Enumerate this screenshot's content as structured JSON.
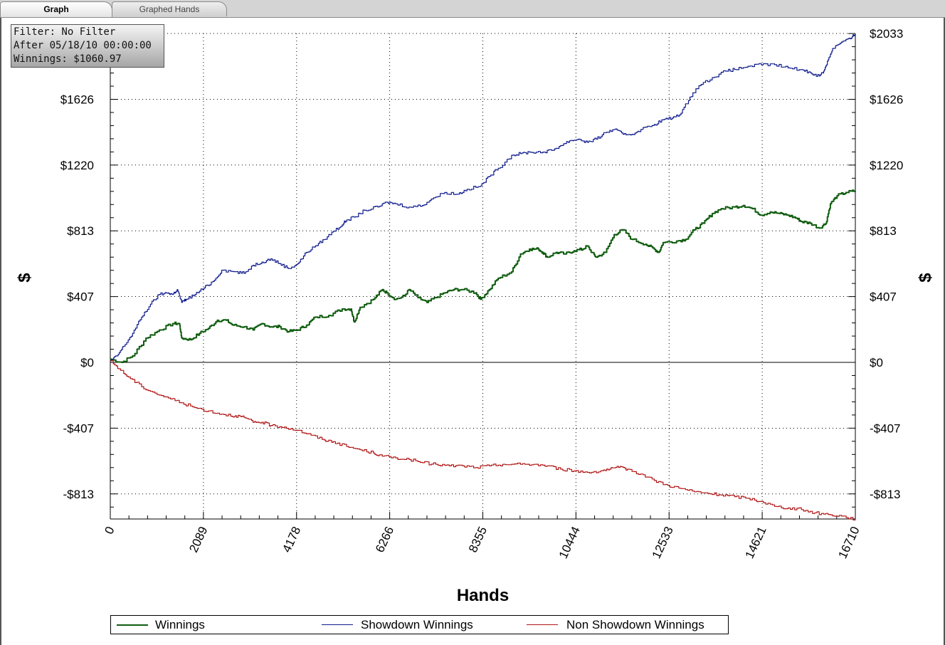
{
  "tabs": [
    {
      "label": "Graph",
      "active": true
    },
    {
      "label": "Graphed Hands",
      "active": false
    }
  ],
  "info": {
    "filter": "Filter: No Filter",
    "after": "After 05/18/10 00:00:00",
    "winnings": "Winnings: $1060.97"
  },
  "chart_data": {
    "type": "line",
    "xlabel": "Hands",
    "ylabel": "$",
    "x_ticks": [
      0,
      2089,
      4178,
      6266,
      8355,
      10444,
      12533,
      14621,
      16710
    ],
    "y_ticks": [
      {
        "value": 2033,
        "label": "$2033"
      },
      {
        "value": 1626,
        "label": "$1626"
      },
      {
        "value": 1220,
        "label": "$1220"
      },
      {
        "value": 813,
        "label": "$813"
      },
      {
        "value": 407,
        "label": "$407"
      },
      {
        "value": 0,
        "label": "$0"
      },
      {
        "value": -407,
        "label": "-$407"
      },
      {
        "value": -813,
        "label": "-$813"
      }
    ],
    "xlim": [
      0,
      16710
    ],
    "ylim": [
      -970,
      2033
    ],
    "grid": true,
    "legend_position": "bottom",
    "series": [
      {
        "name": "Winnings",
        "color": "#0f5c0f",
        "points": [
          [
            0,
            20
          ],
          [
            250,
            0
          ],
          [
            500,
            40
          ],
          [
            800,
            150
          ],
          [
            1100,
            200
          ],
          [
            1400,
            240
          ],
          [
            1550,
            240
          ],
          [
            1600,
            150
          ],
          [
            1800,
            140
          ],
          [
            2000,
            180
          ],
          [
            2200,
            210
          ],
          [
            2400,
            260
          ],
          [
            2600,
            260
          ],
          [
            2750,
            230
          ],
          [
            3000,
            220
          ],
          [
            3200,
            200
          ],
          [
            3400,
            240
          ],
          [
            3600,
            220
          ],
          [
            3800,
            220
          ],
          [
            4000,
            190
          ],
          [
            4200,
            200
          ],
          [
            4400,
            230
          ],
          [
            4600,
            280
          ],
          [
            4900,
            290
          ],
          [
            5200,
            330
          ],
          [
            5400,
            330
          ],
          [
            5470,
            250
          ],
          [
            5600,
            340
          ],
          [
            5900,
            390
          ],
          [
            6100,
            450
          ],
          [
            6200,
            430
          ],
          [
            6400,
            390
          ],
          [
            6600,
            410
          ],
          [
            6700,
            450
          ],
          [
            6900,
            400
          ],
          [
            7100,
            370
          ],
          [
            7300,
            400
          ],
          [
            7500,
            430
          ],
          [
            7700,
            450
          ],
          [
            7900,
            450
          ],
          [
            8200,
            430
          ],
          [
            8300,
            390
          ],
          [
            8500,
            450
          ],
          [
            8700,
            520
          ],
          [
            9000,
            560
          ],
          [
            9200,
            670
          ],
          [
            9400,
            700
          ],
          [
            9600,
            700
          ],
          [
            9700,
            680
          ],
          [
            9800,
            650
          ],
          [
            10000,
            680
          ],
          [
            10200,
            670
          ],
          [
            10400,
            690
          ],
          [
            10600,
            700
          ],
          [
            10700,
            720
          ],
          [
            10800,
            680
          ],
          [
            10900,
            650
          ],
          [
            11100,
            680
          ],
          [
            11300,
            790
          ],
          [
            11500,
            820
          ],
          [
            11700,
            760
          ],
          [
            12000,
            730
          ],
          [
            12200,
            700
          ],
          [
            12300,
            680
          ],
          [
            12400,
            740
          ],
          [
            12700,
            750
          ],
          [
            12900,
            760
          ],
          [
            13100,
            820
          ],
          [
            13300,
            860
          ],
          [
            13500,
            920
          ],
          [
            13700,
            950
          ],
          [
            14000,
            960
          ],
          [
            14200,
            970
          ],
          [
            14400,
            950
          ],
          [
            14600,
            910
          ],
          [
            14800,
            930
          ],
          [
            15000,
            920
          ],
          [
            15200,
            910
          ],
          [
            15400,
            890
          ],
          [
            15500,
            870
          ],
          [
            15700,
            860
          ],
          [
            15900,
            830
          ],
          [
            16050,
            860
          ],
          [
            16150,
            980
          ],
          [
            16300,
            1030
          ],
          [
            16500,
            1050
          ],
          [
            16710,
            1061
          ]
        ]
      },
      {
        "name": "Showdown Winnings",
        "color": "#0d1a8c",
        "points": [
          [
            0,
            10
          ],
          [
            150,
            40
          ],
          [
            300,
            100
          ],
          [
            500,
            180
          ],
          [
            700,
            280
          ],
          [
            900,
            360
          ],
          [
            1100,
            420
          ],
          [
            1300,
            430
          ],
          [
            1400,
            420
          ],
          [
            1500,
            450
          ],
          [
            1600,
            370
          ],
          [
            1700,
            390
          ],
          [
            1900,
            420
          ],
          [
            2100,
            460
          ],
          [
            2300,
            500
          ],
          [
            2500,
            570
          ],
          [
            2800,
            560
          ],
          [
            3000,
            550
          ],
          [
            3200,
            600
          ],
          [
            3400,
            620
          ],
          [
            3600,
            640
          ],
          [
            3800,
            610
          ],
          [
            4000,
            580
          ],
          [
            4200,
            610
          ],
          [
            4400,
            680
          ],
          [
            4600,
            720
          ],
          [
            4800,
            760
          ],
          [
            5000,
            810
          ],
          [
            5200,
            850
          ],
          [
            5300,
            880
          ],
          [
            5500,
            900
          ],
          [
            5700,
            940
          ],
          [
            6000,
            960
          ],
          [
            6200,
            990
          ],
          [
            6400,
            980
          ],
          [
            6700,
            960
          ],
          [
            7000,
            970
          ],
          [
            7200,
            1010
          ],
          [
            7500,
            1050
          ],
          [
            7800,
            1040
          ],
          [
            8000,
            1070
          ],
          [
            8300,
            1090
          ],
          [
            8500,
            1150
          ],
          [
            8700,
            1200
          ],
          [
            9000,
            1280
          ],
          [
            9200,
            1290
          ],
          [
            9400,
            1300
          ],
          [
            9700,
            1300
          ],
          [
            9900,
            1310
          ],
          [
            10100,
            1340
          ],
          [
            10300,
            1370
          ],
          [
            10500,
            1380
          ],
          [
            10700,
            1360
          ],
          [
            10900,
            1380
          ],
          [
            11100,
            1420
          ],
          [
            11300,
            1440
          ],
          [
            11500,
            1410
          ],
          [
            11700,
            1410
          ],
          [
            11900,
            1440
          ],
          [
            12200,
            1470
          ],
          [
            12400,
            1500
          ],
          [
            12600,
            1510
          ],
          [
            12800,
            1540
          ],
          [
            13000,
            1640
          ],
          [
            13200,
            1710
          ],
          [
            13500,
            1760
          ],
          [
            13800,
            1800
          ],
          [
            14000,
            1810
          ],
          [
            14300,
            1830
          ],
          [
            14600,
            1840
          ],
          [
            14900,
            1840
          ],
          [
            15200,
            1820
          ],
          [
            15500,
            1810
          ],
          [
            15700,
            1790
          ],
          [
            15900,
            1770
          ],
          [
            16000,
            1800
          ],
          [
            16100,
            1870
          ],
          [
            16200,
            1940
          ],
          [
            16400,
            1980
          ],
          [
            16600,
            2000
          ],
          [
            16710,
            2033
          ]
        ]
      },
      {
        "name": "Non Showdown Winnings",
        "color": "#b01414",
        "points": [
          [
            0,
            10
          ],
          [
            200,
            -40
          ],
          [
            400,
            -90
          ],
          [
            700,
            -150
          ],
          [
            1000,
            -190
          ],
          [
            1300,
            -220
          ],
          [
            1600,
            -250
          ],
          [
            1900,
            -280
          ],
          [
            2200,
            -300
          ],
          [
            2500,
            -320
          ],
          [
            2800,
            -330
          ],
          [
            3000,
            -340
          ],
          [
            3200,
            -370
          ],
          [
            3400,
            -370
          ],
          [
            3600,
            -390
          ],
          [
            3900,
            -400
          ],
          [
            4200,
            -420
          ],
          [
            4500,
            -450
          ],
          [
            4800,
            -480
          ],
          [
            5000,
            -490
          ],
          [
            5300,
            -520
          ],
          [
            5600,
            -540
          ],
          [
            5900,
            -560
          ],
          [
            6100,
            -580
          ],
          [
            6400,
            -590
          ],
          [
            6700,
            -600
          ],
          [
            7000,
            -620
          ],
          [
            7300,
            -630
          ],
          [
            7600,
            -640
          ],
          [
            7900,
            -640
          ],
          [
            8200,
            -650
          ],
          [
            8500,
            -640
          ],
          [
            8800,
            -630
          ],
          [
            9200,
            -630
          ],
          [
            9500,
            -630
          ],
          [
            9800,
            -640
          ],
          [
            10100,
            -660
          ],
          [
            10400,
            -670
          ],
          [
            10700,
            -680
          ],
          [
            11000,
            -670
          ],
          [
            11200,
            -660
          ],
          [
            11400,
            -650
          ],
          [
            11600,
            -660
          ],
          [
            11900,
            -690
          ],
          [
            12200,
            -730
          ],
          [
            12500,
            -760
          ],
          [
            12800,
            -780
          ],
          [
            13100,
            -800
          ],
          [
            13400,
            -810
          ],
          [
            13700,
            -820
          ],
          [
            14000,
            -830
          ],
          [
            14300,
            -840
          ],
          [
            14600,
            -860
          ],
          [
            14900,
            -890
          ],
          [
            15200,
            -900
          ],
          [
            15500,
            -910
          ],
          [
            15800,
            -930
          ],
          [
            16100,
            -940
          ],
          [
            16400,
            -950
          ],
          [
            16710,
            -970
          ]
        ]
      }
    ]
  }
}
